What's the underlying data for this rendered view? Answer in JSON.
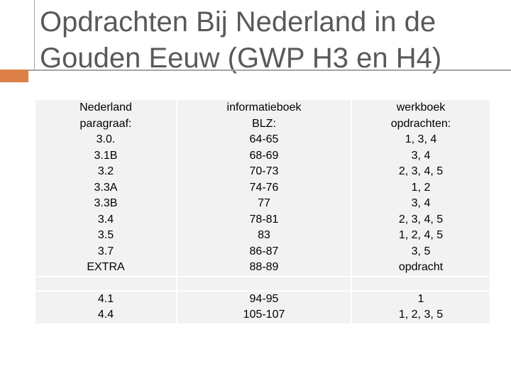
{
  "slide": {
    "title_lines": [
      "Opdrachten Bij Nederland in de",
      "Gouden Eeuw (GWP H3 en H4)"
    ]
  },
  "colors": {
    "accent": "#dd8047",
    "rule": "#a5a5a5",
    "title": "#595959",
    "cell_bg": "#f2f2f2"
  },
  "table": {
    "row1": {
      "col1": [
        "Nederland",
        "paragraaf:",
        "3.0.",
        "3.1B",
        "3.2",
        "3.3A",
        "3.3B",
        "3.4",
        "3.5",
        "3.7",
        "EXTRA"
      ],
      "col2": [
        "informatieboek",
        "BLZ:",
        "64-65",
        "68-69",
        "70-73",
        "74-76",
        "77",
        "78-81",
        "83",
        "86-87",
        "88-89"
      ],
      "col3": [
        "werkboek",
        "opdrachten:",
        "1, 3, 4",
        "3, 4",
        "2, 3, 4, 5",
        "1, 2",
        "3, 4",
        "2, 3, 4, 5",
        "1, 2, 4, 5",
        "3, 5",
        "opdracht"
      ]
    },
    "row2": {
      "col1": [
        "4.1",
        "4.4"
      ],
      "col2": [
        "94-95",
        "105-107"
      ],
      "col3": [
        "1",
        "1, 2, 3, 5"
      ]
    }
  }
}
